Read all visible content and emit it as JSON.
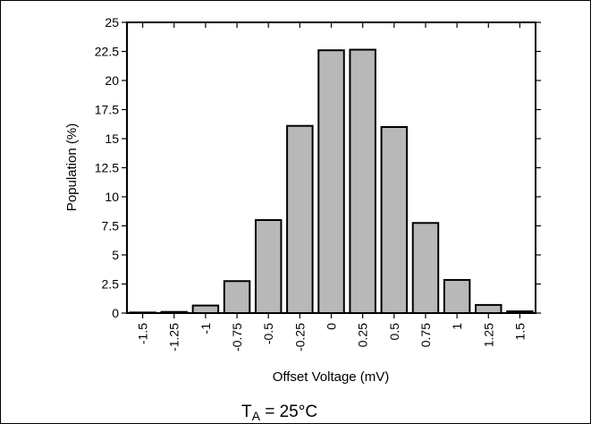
{
  "chart_data": {
    "type": "bar",
    "xlabel": "Offset Voltage (mV)",
    "ylabel": "Population (%)",
    "categories": [
      "-1.5",
      "-1.25",
      "-1",
      "-0.75",
      "-0.5",
      "-0.25",
      "0",
      "0.25",
      "0.5",
      "0.75",
      "1",
      "1.25",
      "1.5"
    ],
    "values": [
      0.05,
      0.1,
      0.65,
      2.75,
      8.0,
      16.1,
      22.6,
      22.65,
      16.0,
      7.75,
      2.85,
      0.7,
      0.15
    ],
    "ylim": [
      0,
      25
    ],
    "yticks": [
      "0",
      "2.5",
      "5",
      "7.5",
      "10",
      "12.5",
      "15",
      "17.5",
      "20",
      "22.5",
      "25"
    ],
    "bar_color": "#b8b8b8",
    "bar_edge_color": "#000000",
    "grid": false,
    "legend": "none"
  },
  "caption": {
    "main": "T",
    "subscript": "A",
    "rest": " = 25°C"
  }
}
